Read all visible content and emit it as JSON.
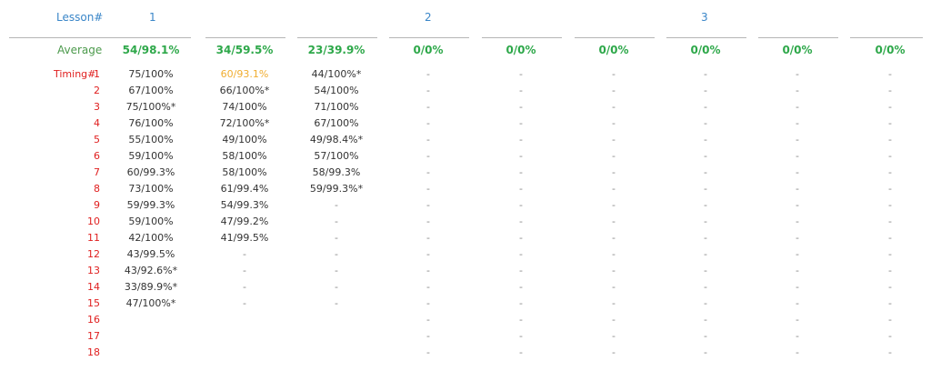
{
  "header": {
    "lesson_label": "Lesson#",
    "lessons": [
      "1",
      "2",
      "3"
    ]
  },
  "average": {
    "label": "Average",
    "values": [
      "54/98.1%",
      "34/59.5%",
      "23/39.9%",
      "0/0%",
      "0/0%",
      "0/0%",
      "0/0%",
      "0/0%",
      "0/0%"
    ]
  },
  "timing": {
    "label": "Timing#",
    "rows": [
      {
        "num": "1",
        "cells": [
          "75/100%",
          "60/93.1%",
          "44/100%*",
          "-",
          "-",
          "-",
          "-",
          "-",
          "-"
        ]
      },
      {
        "num": "2",
        "cells": [
          "67/100%",
          "66/100%*",
          "54/100%",
          "-",
          "-",
          "-",
          "-",
          "-",
          "-"
        ]
      },
      {
        "num": "3",
        "cells": [
          "75/100%*",
          "74/100%",
          "71/100%",
          "-",
          "-",
          "-",
          "-",
          "-",
          "-"
        ]
      },
      {
        "num": "4",
        "cells": [
          "76/100%",
          "72/100%*",
          "67/100%",
          "-",
          "-",
          "-",
          "-",
          "-",
          "-"
        ]
      },
      {
        "num": "5",
        "cells": [
          "55/100%",
          "49/100%",
          "49/98.4%*",
          "-",
          "-",
          "-",
          "-",
          "-",
          "-"
        ]
      },
      {
        "num": "6",
        "cells": [
          "59/100%",
          "58/100%",
          "57/100%",
          "-",
          "-",
          "-",
          "-",
          "-",
          "-"
        ]
      },
      {
        "num": "7",
        "cells": [
          "60/99.3%",
          "58/100%",
          "58/99.3%",
          "-",
          "-",
          "-",
          "-",
          "-",
          "-"
        ]
      },
      {
        "num": "8",
        "cells": [
          "73/100%",
          "61/99.4%",
          "59/99.3%*",
          "-",
          "-",
          "-",
          "-",
          "-",
          "-"
        ]
      },
      {
        "num": "9",
        "cells": [
          "59/99.3%",
          "54/99.3%",
          "-",
          "-",
          "-",
          "-",
          "-",
          "-",
          "-"
        ]
      },
      {
        "num": "10",
        "cells": [
          "59/100%",
          "47/99.2%",
          "-",
          "-",
          "-",
          "-",
          "-",
          "-",
          "-"
        ]
      },
      {
        "num": "11",
        "cells": [
          "42/100%",
          "41/99.5%",
          "-",
          "-",
          "-",
          "-",
          "-",
          "-",
          "-"
        ]
      },
      {
        "num": "12",
        "cells": [
          "43/99.5%",
          "-",
          "-",
          "-",
          "-",
          "-",
          "-",
          "-",
          "-"
        ]
      },
      {
        "num": "13",
        "cells": [
          "43/92.6%*",
          "-",
          "-",
          "-",
          "-",
          "-",
          "-",
          "-",
          "-"
        ]
      },
      {
        "num": "14",
        "cells": [
          "33/89.9%*",
          "-",
          "-",
          "-",
          "-",
          "-",
          "-",
          "-",
          "-"
        ]
      },
      {
        "num": "15",
        "cells": [
          "47/100%*",
          "-",
          "-",
          "-",
          "-",
          "-",
          "-",
          "-",
          "-"
        ]
      },
      {
        "num": "16",
        "cells": [
          "",
          "",
          "",
          "-",
          "-",
          "-",
          "-",
          "-",
          "-"
        ]
      },
      {
        "num": "17",
        "cells": [
          "",
          "",
          "",
          "-",
          "-",
          "-",
          "-",
          "-",
          "-"
        ]
      },
      {
        "num": "18",
        "cells": [
          "",
          "",
          "",
          "-",
          "-",
          "-",
          "-",
          "-",
          "-"
        ]
      }
    ],
    "highlight": {
      "row": 0,
      "col": 1
    }
  },
  "colors": {
    "lesson_blue": "#3a86c8",
    "average_green": "#2ea84a",
    "timing_red": "#e02020",
    "highlight_orange": "#f0ad30",
    "separator_gray": "#b5b5b5"
  }
}
